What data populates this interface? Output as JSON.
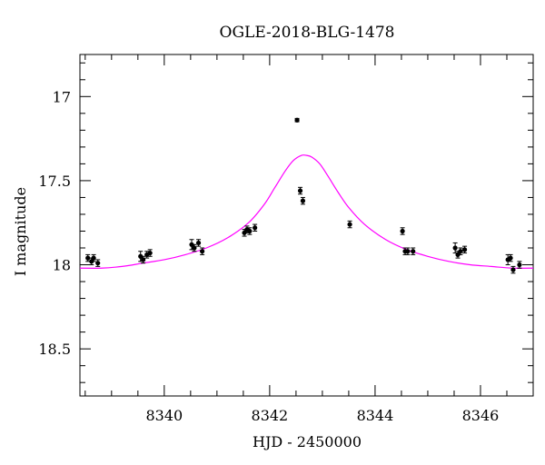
{
  "chart_data": {
    "type": "scatter",
    "title": "OGLE-2018-BLG-1478",
    "xlabel": "HJD - 2450000",
    "ylabel": "I magnitude",
    "xlim": [
      8338.4,
      8347.0
    ],
    "ylim": [
      18.78,
      16.75
    ],
    "y_inverted": true,
    "xticks": [
      8340,
      8342,
      8344,
      8346
    ],
    "xtick_labels": [
      "8340",
      "8342",
      "8344",
      "8346"
    ],
    "yticks": [
      17,
      17.5,
      18,
      18.5
    ],
    "ytick_labels": [
      "17",
      "17.5",
      "18",
      "18.5"
    ],
    "grid": false,
    "colors": {
      "data": "#000000",
      "model": "#ff00ff"
    },
    "series": [
      {
        "kind": "points",
        "points": [
          {
            "x": 8338.55,
            "y": 17.96,
            "err": 0.02
          },
          {
            "x": 8338.62,
            "y": 17.98,
            "err": 0.02
          },
          {
            "x": 8338.66,
            "y": 17.96,
            "err": 0.02
          },
          {
            "x": 8338.74,
            "y": 17.99,
            "err": 0.02
          },
          {
            "x": 8339.55,
            "y": 17.95,
            "err": 0.03
          },
          {
            "x": 8339.6,
            "y": 17.97,
            "err": 0.02
          },
          {
            "x": 8339.67,
            "y": 17.94,
            "err": 0.02
          },
          {
            "x": 8339.73,
            "y": 17.93,
            "err": 0.02
          },
          {
            "x": 8340.52,
            "y": 17.88,
            "err": 0.03
          },
          {
            "x": 8340.57,
            "y": 17.9,
            "err": 0.02
          },
          {
            "x": 8340.65,
            "y": 17.87,
            "err": 0.02
          },
          {
            "x": 8340.72,
            "y": 17.92,
            "err": 0.02
          },
          {
            "x": 8341.52,
            "y": 17.81,
            "err": 0.02
          },
          {
            "x": 8341.57,
            "y": 17.79,
            "err": 0.02
          },
          {
            "x": 8341.62,
            "y": 17.8,
            "err": 0.02
          },
          {
            "x": 8341.72,
            "y": 17.78,
            "err": 0.02
          },
          {
            "x": 8342.52,
            "y": 17.14,
            "err": 0.01
          },
          {
            "x": 8342.58,
            "y": 17.56,
            "err": 0.02
          },
          {
            "x": 8342.63,
            "y": 17.62,
            "err": 0.02
          },
          {
            "x": 8343.52,
            "y": 17.76,
            "err": 0.02
          },
          {
            "x": 8344.52,
            "y": 17.8,
            "err": 0.02
          },
          {
            "x": 8344.57,
            "y": 17.92,
            "err": 0.02
          },
          {
            "x": 8344.62,
            "y": 17.92,
            "err": 0.02
          },
          {
            "x": 8344.72,
            "y": 17.92,
            "err": 0.02
          },
          {
            "x": 8345.52,
            "y": 17.9,
            "err": 0.03
          },
          {
            "x": 8345.57,
            "y": 17.94,
            "err": 0.02
          },
          {
            "x": 8345.62,
            "y": 17.92,
            "err": 0.02
          },
          {
            "x": 8345.7,
            "y": 17.91,
            "err": 0.02
          },
          {
            "x": 8346.52,
            "y": 17.97,
            "err": 0.03
          },
          {
            "x": 8346.57,
            "y": 17.96,
            "err": 0.02
          },
          {
            "x": 8346.62,
            "y": 18.03,
            "err": 0.02
          },
          {
            "x": 8346.74,
            "y": 18.0,
            "err": 0.02
          }
        ]
      },
      {
        "kind": "model",
        "x": [
          8338.4,
          8338.8,
          8339.2,
          8339.6,
          8340.0,
          8340.4,
          8340.8,
          8341.2,
          8341.6,
          8341.9,
          8342.1,
          8342.3,
          8342.45,
          8342.6,
          8342.7,
          8342.8,
          8342.95,
          8343.1,
          8343.3,
          8343.5,
          8343.8,
          8344.2,
          8344.6,
          8345.0,
          8345.4,
          8345.8,
          8346.2,
          8346.6,
          8347.0
        ],
        "y": [
          18.02,
          18.02,
          18.01,
          17.99,
          17.97,
          17.94,
          17.9,
          17.84,
          17.75,
          17.64,
          17.54,
          17.44,
          17.38,
          17.35,
          17.35,
          17.36,
          17.4,
          17.47,
          17.57,
          17.66,
          17.76,
          17.85,
          17.91,
          17.95,
          17.98,
          18.0,
          18.01,
          18.02,
          18.02
        ]
      }
    ]
  }
}
